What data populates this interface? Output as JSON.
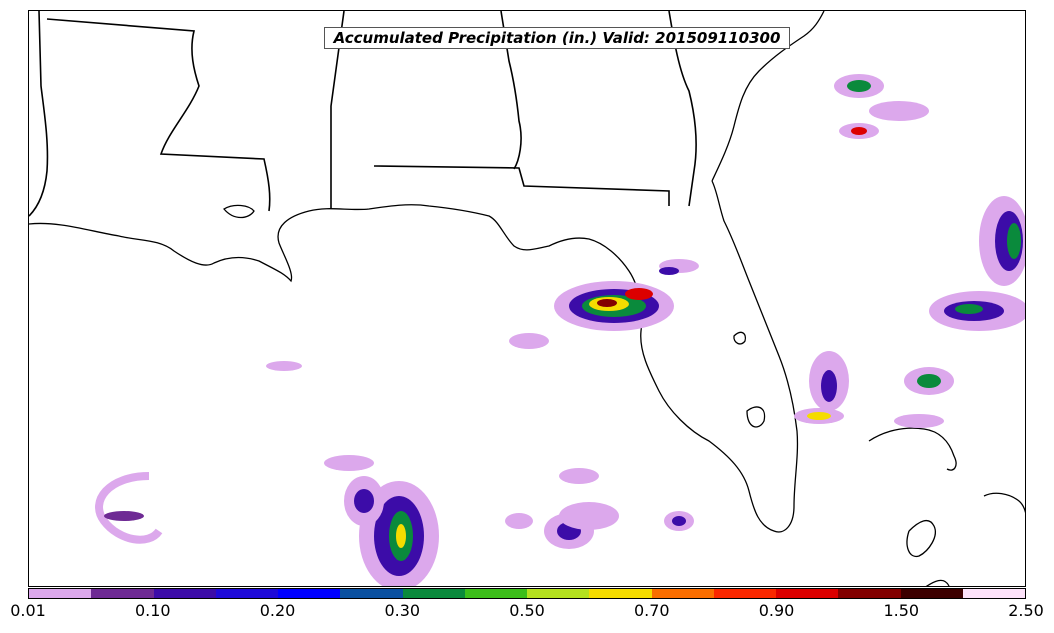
{
  "map": {
    "title": "Accumulated Precipitation (in.) Valid: 201509110300",
    "variable": "Accumulated Precipitation",
    "units": "in.",
    "valid_time": "201509110300",
    "region": "Gulf of Mexico / Florida / Southeastern US",
    "background_color": "#ffffff",
    "boundary_color": "#000000"
  },
  "colorbar": {
    "colors": [
      "#dca8ec",
      "#6e2a94",
      "#3c0ca8",
      "#1e0ad8",
      "#0000ff",
      "#0a50a0",
      "#0a8a3c",
      "#3cbe1a",
      "#b4e11e",
      "#f5dc00",
      "#fa6e00",
      "#fa2800",
      "#dc0000",
      "#820000",
      "#3c0000",
      "#fde2fa"
    ],
    "tick_labels": [
      "0.01",
      "0.10",
      "0.20",
      "0.30",
      "0.50",
      "0.70",
      "0.90",
      "1.50",
      "2.50"
    ]
  }
}
